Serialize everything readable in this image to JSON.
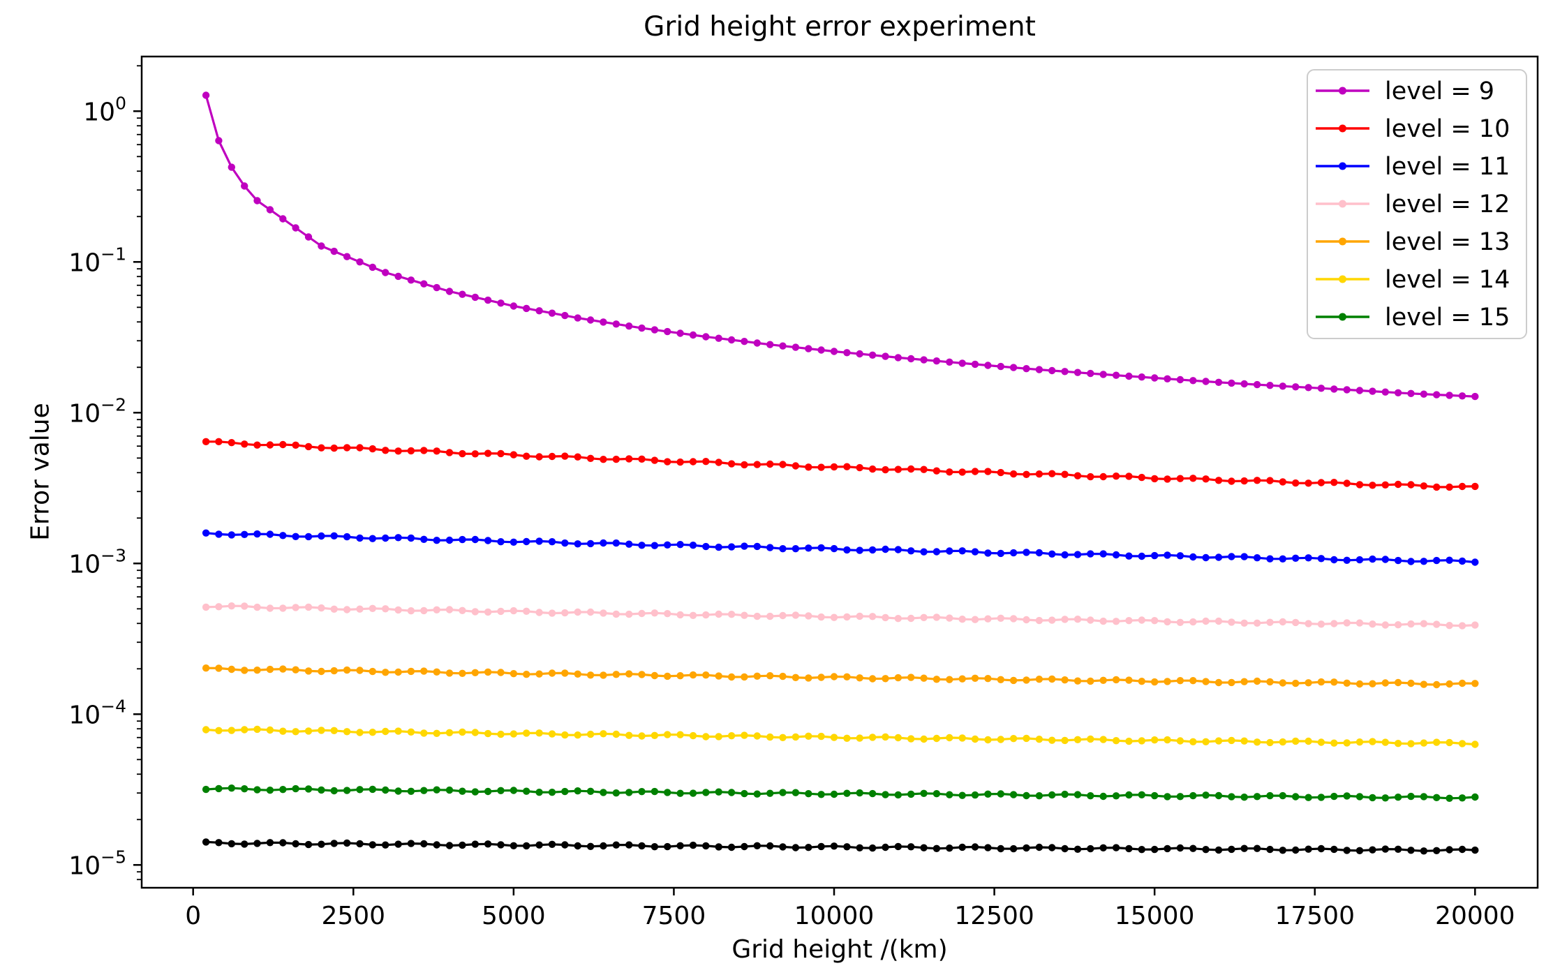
{
  "figure": {
    "title": "Grid height error experiment",
    "xlabel": "Grid height /(km)",
    "ylabel": "Error value"
  },
  "chart_data": {
    "type": "line",
    "title": "Grid height error experiment",
    "xlabel": "Grid height /(km)",
    "ylabel": "Error value",
    "x_scale": "linear",
    "y_scale": "log",
    "xlim_km": [
      -800,
      21000
    ],
    "ylim": [
      7.1e-06,
      2.3
    ],
    "x_ticks_km": [
      0,
      2500,
      5000,
      7500,
      10000,
      12500,
      15000,
      17500,
      20000
    ],
    "y_tick_exponents": [
      0,
      -1,
      -2,
      -3,
      -4,
      -5
    ],
    "grid": false,
    "legend_position": "upper right",
    "marker": "point",
    "sampling_km": {
      "start": 200,
      "step": 200,
      "end": 20000
    },
    "anchor_x_km": [
      200,
      400,
      600,
      800,
      1000,
      2000,
      3000,
      4000,
      5000,
      6000,
      7000,
      8000,
      9000,
      10000,
      11000,
      12000,
      13000,
      14000,
      15000,
      16000,
      17000,
      18000,
      19000,
      20000
    ],
    "series": [
      {
        "label": "level = 9",
        "color": "#bf00bf",
        "in_legend": true,
        "values_at_anchors": [
          1.275,
          0.6375,
          0.425,
          0.319,
          0.255,
          0.1275,
          0.085,
          0.0638,
          0.051,
          0.0425,
          0.0364,
          0.0319,
          0.0283,
          0.0255,
          0.0232,
          0.0213,
          0.0196,
          0.0182,
          0.017,
          0.0159,
          0.015,
          0.0142,
          0.0134,
          0.0128
        ]
      },
      {
        "label": "level = 10",
        "color": "#ff0000",
        "in_legend": true,
        "values_at_anchors": [
          0.0064,
          0.00634,
          0.00629,
          0.00624,
          0.00618,
          0.00592,
          0.00568,
          0.00546,
          0.00524,
          0.00504,
          0.00486,
          0.00468,
          0.00451,
          0.00435,
          0.00421,
          0.00407,
          0.00394,
          0.00381,
          0.00369,
          0.00358,
          0.00348,
          0.00338,
          0.00329,
          0.0032
        ]
      },
      {
        "label": "level = 11",
        "color": "#0000ff",
        "in_legend": true,
        "values_at_anchors": [
          0.00158,
          0.001576,
          0.001568,
          0.00156,
          0.001551,
          0.001511,
          0.001473,
          0.001436,
          0.001401,
          0.001367,
          0.001335,
          0.001304,
          0.001275,
          0.001247,
          0.001221,
          0.001195,
          0.00117,
          0.001147,
          0.001124,
          0.001103,
          0.001082,
          0.001063,
          0.001044,
          0.00103
        ]
      },
      {
        "label": "level = 12",
        "color": "#ffc0cb",
        "in_legend": true,
        "values_at_anchors": [
          0.00052,
          0.000518,
          0.0005165,
          0.000515,
          0.000513,
          0.000504,
          0.000495,
          0.000487,
          0.000479,
          0.000471,
          0.000464,
          0.000457,
          0.00045,
          0.000444,
          0.000437,
          0.000431,
          0.000425,
          0.00042,
          0.000414,
          0.000409,
          0.000404,
          0.000399,
          0.000394,
          0.00039
        ]
      },
      {
        "label": "level = 13",
        "color": "#ffa500",
        "in_legend": true,
        "values_at_anchors": [
          0.0002,
          0.0001994,
          0.0001988,
          0.0001982,
          0.0001977,
          0.0001948,
          0.0001921,
          0.0001894,
          0.0001868,
          0.0001844,
          0.000182,
          0.0001797,
          0.0001775,
          0.0001754,
          0.0001733,
          0.0001714,
          0.0001695,
          0.0001677,
          0.0001659,
          0.0001642,
          0.0001626,
          0.0001611,
          0.0001596,
          0.0001581
        ]
      },
      {
        "label": "level = 14",
        "color": "#ffd700",
        "in_legend": true,
        "values_at_anchors": [
          7.9e-05,
          7.89e-05,
          7.87e-05,
          7.85e-05,
          7.83e-05,
          7.72e-05,
          7.63e-05,
          7.53e-05,
          7.44e-05,
          7.35e-05,
          7.27e-05,
          7.19e-05,
          7.11e-05,
          7.03e-05,
          6.95e-05,
          6.88e-05,
          6.82e-05,
          6.75e-05,
          6.68e-05,
          6.62e-05,
          6.56e-05,
          6.51e-05,
          6.45e-05,
          6.4e-05
        ]
      },
      {
        "label": "level = 15",
        "color": "#008000",
        "in_legend": true,
        "values_at_anchors": [
          3.2e-05,
          3.194e-05,
          3.188e-05,
          3.183e-05,
          3.18e-05,
          3.153e-05,
          3.128e-05,
          3.104e-05,
          3.08e-05,
          3.058e-05,
          3.035e-05,
          3.014e-05,
          2.99e-05,
          2.97e-05,
          2.952e-05,
          2.932e-05,
          2.914e-05,
          2.895e-05,
          2.878e-05,
          2.861e-05,
          2.845e-05,
          2.829e-05,
          2.813e-05,
          2.8e-05
        ]
      },
      {
        "label": "",
        "color": "#000000",
        "in_legend": false,
        "values_at_anchors": [
          1.4e-05,
          1.398e-05,
          1.396e-05,
          1.394e-05,
          1.392e-05,
          1.382e-05,
          1.373e-05,
          1.364e-05,
          1.356e-05,
          1.347e-05,
          1.339e-05,
          1.331e-05,
          1.323e-05,
          1.315e-05,
          1.308e-05,
          1.3e-05,
          1.294e-05,
          1.287e-05,
          1.28e-05,
          1.274e-05,
          1.268e-05,
          1.262e-05,
          1.256e-05,
          1.25e-05
        ]
      }
    ],
    "legend_entries": [
      "level = 9",
      "level = 10",
      "level = 11",
      "level = 12",
      "level = 13",
      "level = 14",
      "level = 15"
    ]
  }
}
